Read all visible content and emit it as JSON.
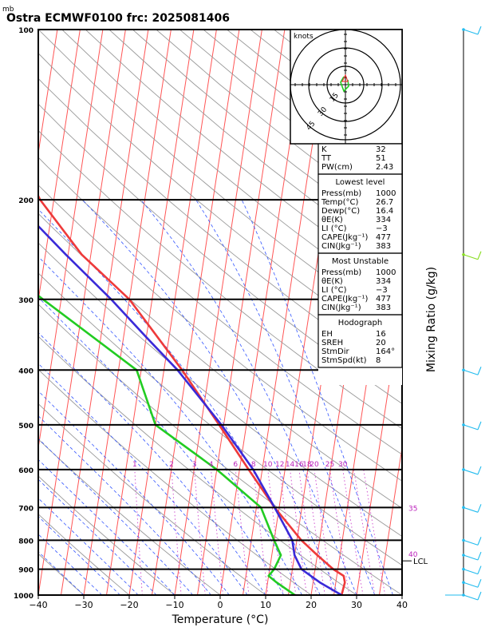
{
  "header": {
    "unit_label": "mb",
    "title": "Ostra ECMWF0100 frc: 2025081406"
  },
  "colors": {
    "temperature": "#ee3a3a",
    "dewpoint": "#22cc22",
    "parcel": "#3a2ad8",
    "isotherm": "#ff5555",
    "dry_adiabat": "#999999",
    "moist_adiabat": "#3355ff",
    "mixing_ratio": "#cc44cc",
    "label_purple": "#bb22bb",
    "wind": "#22bbee",
    "hodograph": "#22cc22"
  },
  "chart_data": {
    "type": "line",
    "title": "Ostra ECMWF0100 frc: 2025081406",
    "xlabel": "Temperature (°C)",
    "ylabel": "mb",
    "right_label": "Mixing Ratio (g/kg)",
    "xlim": [
      -40,
      40
    ],
    "ylim": [
      1000,
      100
    ],
    "x_ticks": [
      "−40",
      "−30",
      "−20",
      "−10",
      "0",
      "10",
      "20",
      "30",
      "40"
    ],
    "pressure_ticks": [
      "100",
      "200",
      "300",
      "400",
      "500",
      "600",
      "700",
      "800",
      "900",
      "1000"
    ],
    "mixing_ratio_labels": [
      "1",
      "2",
      "3",
      "4",
      "6",
      "8",
      "10",
      "12",
      "14",
      "16",
      "18",
      "20",
      "25",
      "30"
    ],
    "mixing_ratio_right_labels": [
      "35",
      "40"
    ],
    "lcl_label": "LCL",
    "series": [
      {
        "name": "Temperature",
        "p": [
          1000,
          950,
          925,
          900,
          850,
          800,
          700,
          600,
          500,
          400,
          300,
          250,
          200,
          150,
          100
        ],
        "t": [
          26.7,
          27.0,
          26.5,
          24.0,
          20.0,
          16.0,
          9.0,
          2.0,
          -6.0,
          -16.0,
          -30.0,
          -42.0,
          -53.0,
          -63.0,
          -72.0
        ]
      },
      {
        "name": "Dewpoint",
        "p": [
          1000,
          950,
          925,
          900,
          850,
          800,
          700,
          600,
          500,
          400,
          300,
          250,
          200,
          150,
          100
        ],
        "t": [
          16.4,
          12.0,
          10.0,
          11.0,
          12.0,
          10.0,
          6.0,
          -5.0,
          -20.0,
          -26.0,
          -49.0,
          -63.0,
          -72.0,
          -80.0,
          -92.0
        ]
      },
      {
        "name": "Parcel",
        "p": [
          1000,
          950,
          900,
          850,
          800,
          700,
          600,
          500,
          400,
          350,
          300,
          250,
          200,
          150,
          100
        ],
        "t": [
          26.7,
          21.5,
          17.0,
          15.0,
          14.0,
          9.0,
          3.0,
          -5.5,
          -17.0,
          -25.0,
          -34.0,
          -45.5,
          -59.0,
          -74.0,
          -92.0
        ]
      }
    ]
  },
  "hodograph": {
    "label": "knots",
    "ring_labels": [
      "15",
      "30",
      "45"
    ]
  },
  "indices": [
    {
      "key": "K",
      "value": "32"
    },
    {
      "key": "TT",
      "value": "51"
    },
    {
      "key": "PW(cm)",
      "value": "2.43"
    }
  ],
  "lowest_level": {
    "heading": "Lowest level",
    "rows": [
      {
        "key": "Press(mb)",
        "value": "1000"
      },
      {
        "key": "Temp(°C)",
        "value": "26.7"
      },
      {
        "key": "Dewp(°C)",
        "value": "16.4"
      },
      {
        "key": "θE(K)",
        "value": "334"
      },
      {
        "key": "LI (°C)",
        "value": "−3"
      },
      {
        "key": "CAPE(Jkg⁻¹)",
        "value": "477"
      },
      {
        "key": "CIN(Jkg⁻¹)",
        "value": "383"
      }
    ]
  },
  "most_unstable": {
    "heading": "Most Unstable",
    "rows": [
      {
        "key": "Press(mb)",
        "value": "1000"
      },
      {
        "key": "θE(K)",
        "value": "334"
      },
      {
        "key": "LI (°C)",
        "value": "−3"
      },
      {
        "key": "CAPE(Jkg⁻¹)",
        "value": "477"
      },
      {
        "key": "CIN(Jkg⁻¹)",
        "value": "383"
      }
    ]
  },
  "hodograph_box": {
    "heading": "Hodograph",
    "rows": [
      {
        "key": "EH",
        "value": "16"
      },
      {
        "key": "SREH",
        "value": "20"
      },
      {
        "key": "StmDir",
        "value": "164°"
      },
      {
        "key": "StmSpd(kt)",
        "value": "8"
      }
    ]
  }
}
